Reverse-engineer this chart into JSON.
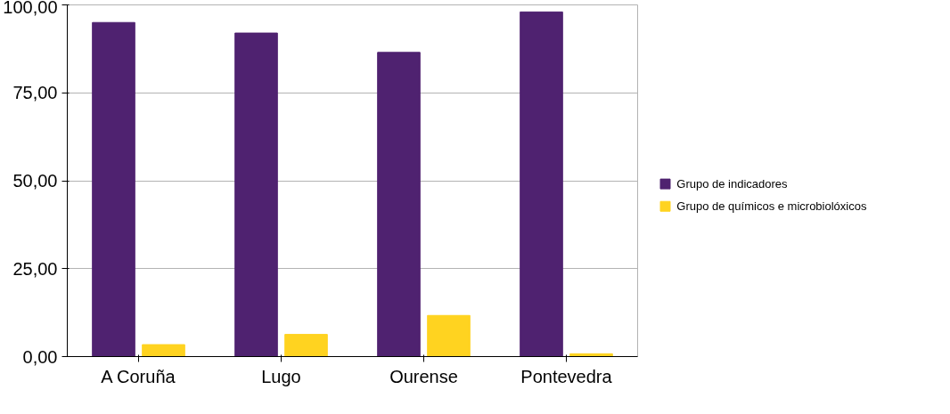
{
  "chart_data": {
    "type": "bar",
    "categories": [
      "A Coruña",
      "Lugo",
      "Ourense",
      "Pontevedra"
    ],
    "series": [
      {
        "name": "Grupo de indicadores",
        "color": "#4f2270",
        "values": [
          95,
          92,
          86.5,
          98
        ]
      },
      {
        "name": "Grupo de químicos e microbiolóxicos",
        "color": "#ffd320",
        "values": [
          3.4,
          6.3,
          11.7,
          0.8
        ]
      }
    ],
    "ylim": [
      0,
      100
    ],
    "yticks": [
      {
        "value": 0,
        "label": "0,00"
      },
      {
        "value": 25,
        "label": "25,00"
      },
      {
        "value": 50,
        "label": "50,00"
      },
      {
        "value": 75,
        "label": "75,00"
      },
      {
        "value": 100,
        "label": "100,00"
      }
    ],
    "grid": "y",
    "legend": "right"
  }
}
